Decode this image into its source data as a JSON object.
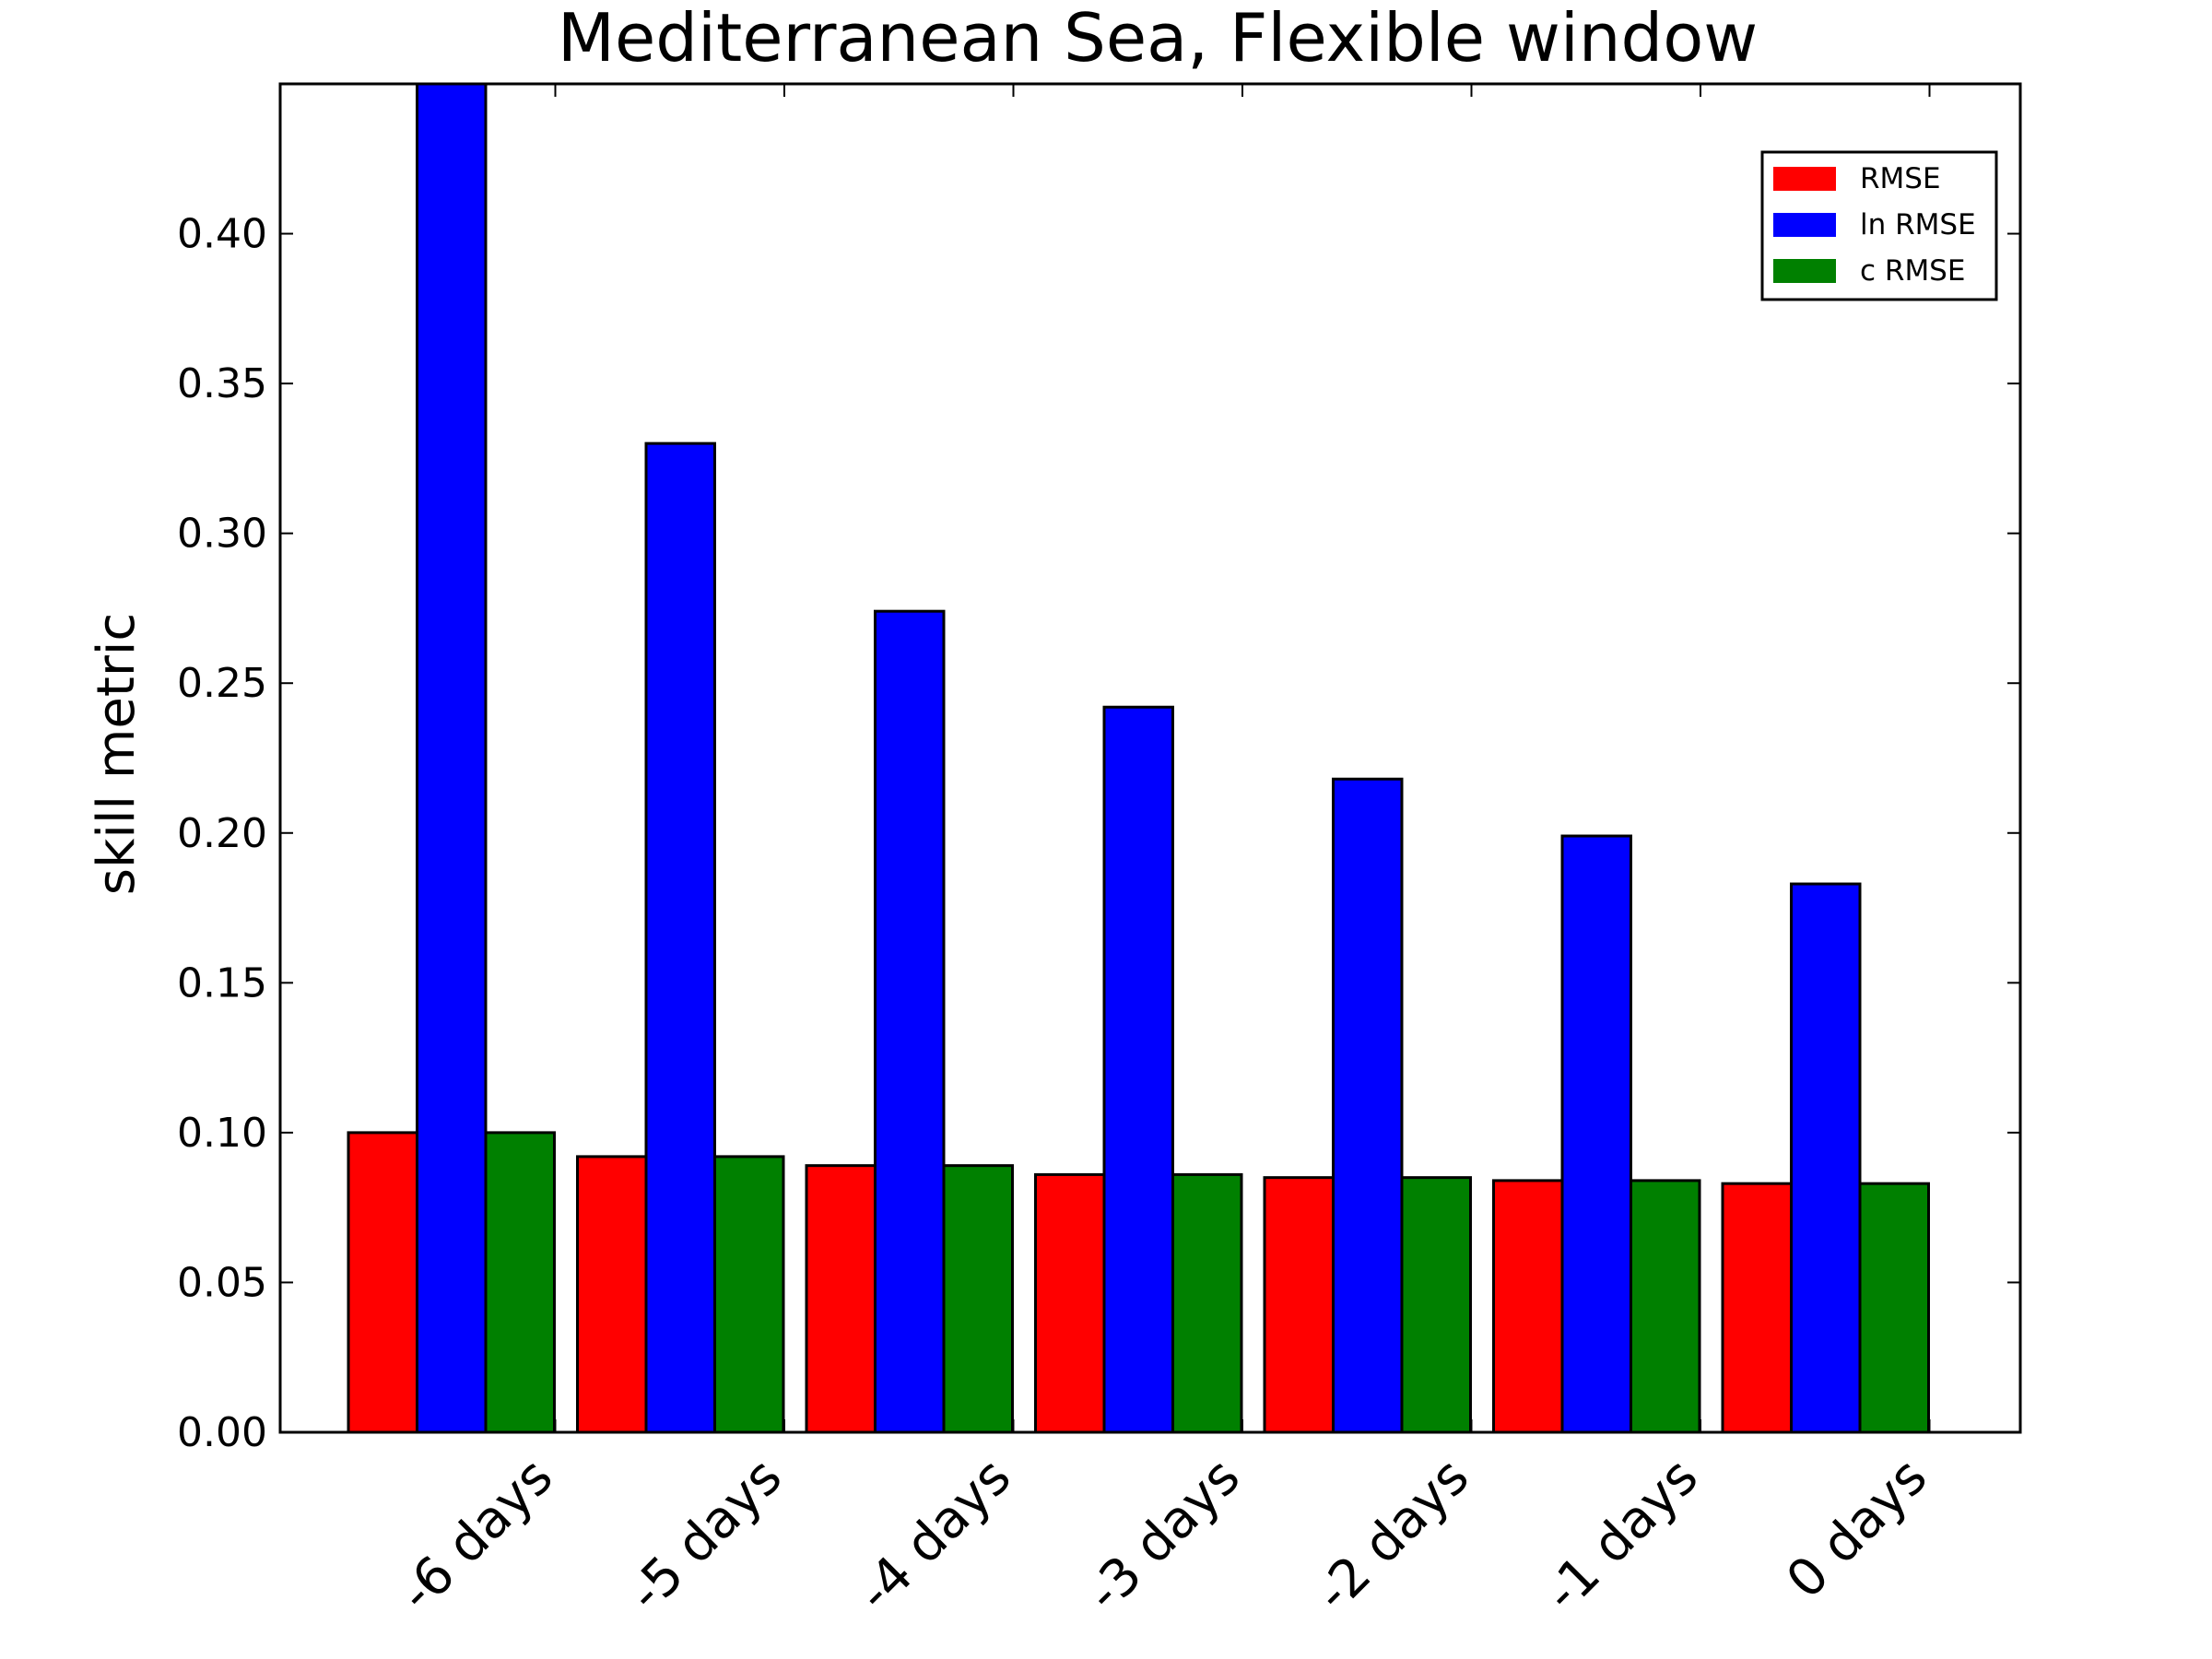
{
  "chart_data": {
    "type": "bar",
    "title": "Mediterranean Sea, Flexible window",
    "xlabel": "",
    "ylabel": "skill metric",
    "ylim": [
      0,
      0.45
    ],
    "yticks": [
      "0.00",
      "0.05",
      "0.10",
      "0.15",
      "0.20",
      "0.25",
      "0.30",
      "0.35",
      "0.40"
    ],
    "categories": [
      "-6 days",
      "-5 days",
      "-4 days",
      "-3 days",
      "-2 days",
      "-1 days",
      "0 days"
    ],
    "grid": false,
    "legend_position": "top-right",
    "series": [
      {
        "name": "RMSE",
        "color": "#ff0000",
        "values": [
          0.1,
          0.092,
          0.089,
          0.086,
          0.085,
          0.084,
          0.083
        ]
      },
      {
        "name": "ln RMSE",
        "color": "#0000ff",
        "values": [
          0.45,
          0.33,
          0.274,
          0.242,
          0.218,
          0.199,
          0.183
        ]
      },
      {
        "name": "c RMSE",
        "color": "#008000",
        "values": [
          0.1,
          0.092,
          0.089,
          0.086,
          0.085,
          0.084,
          0.083
        ]
      }
    ]
  }
}
